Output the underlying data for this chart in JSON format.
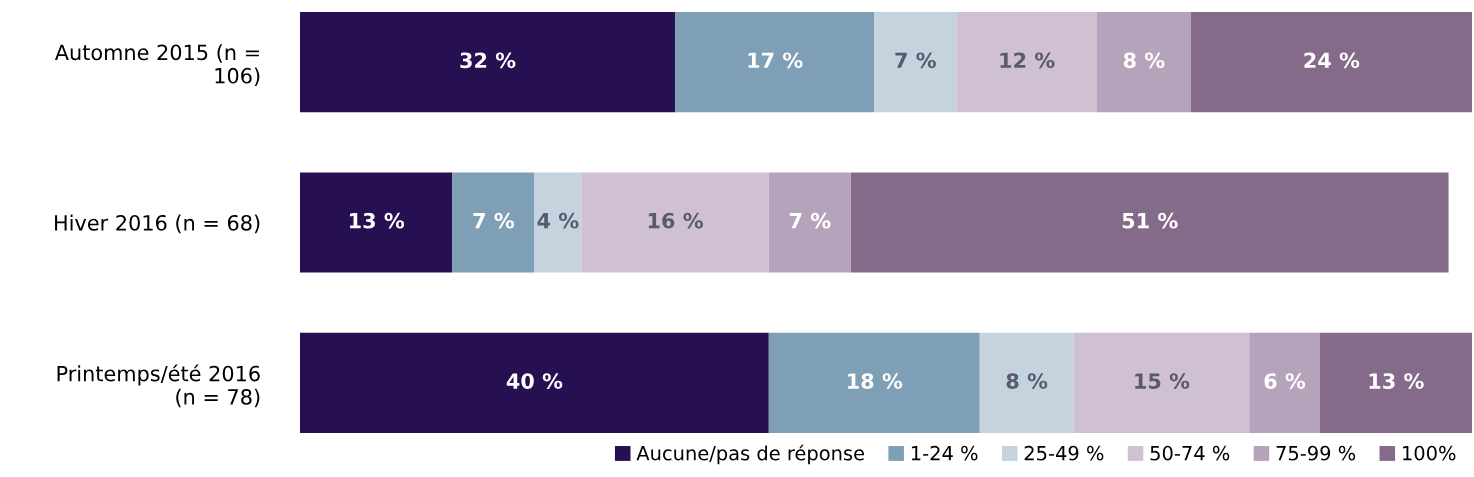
{
  "chart_data": {
    "type": "bar",
    "orientation": "horizontal",
    "stacked": true,
    "data_labels": true,
    "legend": "bottom right",
    "grid": false,
    "tick_labels": "y",
    "xlim": [
      0,
      100
    ],
    "categories": [
      "Automne 2015 (n =\n106)",
      "Hiver 2016 (n = 68)",
      "Printemps/été 2016\n(n = 78)"
    ],
    "series": [
      {
        "name": "Aucune/pas de réponse",
        "color": "#261052",
        "values": [
          32,
          13,
          40
        ],
        "value_labels": [
          "32 %",
          "13 %",
          "40 %"
        ]
      },
      {
        "name": "1-24 %",
        "color": "#7f9fb7",
        "values": [
          17,
          7,
          18
        ],
        "value_labels": [
          "17 %",
          "7 %",
          "18 %"
        ]
      },
      {
        "name": "25-49 %",
        "color": "#c4d3de",
        "values": [
          7,
          4,
          8
        ],
        "value_labels": [
          "7 %",
          "4 %",
          "8 %"
        ]
      },
      {
        "name": "50-74 %",
        "color": "#cfc1d2",
        "values": [
          12,
          16,
          15
        ],
        "value_labels": [
          "12 %",
          "16 %",
          "15 %"
        ]
      },
      {
        "name": "75-99 %",
        "color": "#b5a3bb",
        "values": [
          8,
          7,
          6
        ],
        "value_labels": [
          "8 %",
          "7 %",
          "6 %"
        ]
      },
      {
        "name": "100%",
        "color": "#856b8a",
        "values": [
          24,
          51,
          13
        ],
        "value_labels": [
          "24 %",
          "51 %",
          "13 %"
        ]
      }
    ]
  }
}
